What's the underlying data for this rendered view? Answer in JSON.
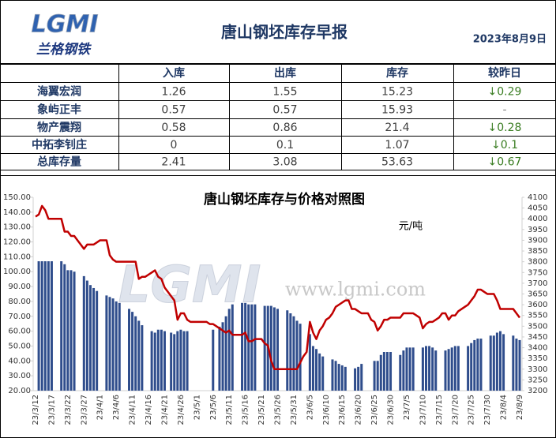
{
  "header": {
    "logo": "LGMI",
    "brand": "兰格钢铁",
    "title": "唐山钢坯库存早报",
    "date": "2023年8月9日"
  },
  "table": {
    "columns": [
      "入库",
      "出库",
      "库存",
      "较昨日"
    ],
    "rows": [
      [
        "海翼宏润",
        "1.26",
        "1.55",
        "15.23",
        "↓0.29"
      ],
      [
        "象屿正丰",
        "0.57",
        "0.57",
        "15.93",
        "-"
      ],
      [
        "物产震翔",
        "0.58",
        "0.86",
        "21.4",
        "↓0.28"
      ],
      [
        "中拓李钊庄",
        "0",
        "0.1",
        "1.07",
        "↓0.1"
      ],
      [
        "总库存量",
        "2.41",
        "3.08",
        "53.63",
        "↓0.67"
      ]
    ]
  },
  "chart_data": {
    "type": "combo",
    "title": "唐山钢坯库存与价格对照图",
    "unit_label": "元/吨",
    "watermark": "www.lgmi.com",
    "categories": [
      "23/3/12",
      null,
      null,
      null,
      null,
      "23/3/17",
      null,
      null,
      null,
      null,
      "23/3/22",
      null,
      null,
      null,
      null,
      "23/3/27",
      null,
      null,
      null,
      null,
      "23/4/1",
      null,
      null,
      null,
      null,
      "23/4/6",
      null,
      null,
      null,
      null,
      "23/4/11",
      null,
      null,
      null,
      null,
      "23/4/16",
      null,
      null,
      null,
      null,
      "23/4/21",
      null,
      null,
      null,
      null,
      "23/4/26",
      null,
      null,
      null,
      null,
      "23/5/1",
      null,
      null,
      null,
      null,
      "23/5/6",
      null,
      null,
      null,
      null,
      "23/5/11",
      null,
      null,
      null,
      null,
      "23/5/16",
      null,
      null,
      null,
      null,
      "23/5/21",
      null,
      null,
      null,
      null,
      "23/5/26",
      null,
      null,
      null,
      null,
      "23/5/31",
      null,
      null,
      null,
      null,
      "23/6/5",
      null,
      null,
      null,
      null,
      "23/6/10",
      null,
      null,
      null,
      null,
      "23/6/15",
      null,
      null,
      null,
      null,
      "23/6/20",
      null,
      null,
      null,
      null,
      "23/6/25",
      null,
      null,
      null,
      null,
      "23/6/30",
      null,
      null,
      null,
      null,
      "23/7/5",
      null,
      null,
      null,
      null,
      "23/7/10",
      null,
      null,
      null,
      null,
      "23/7/15",
      null,
      null,
      null,
      null,
      "23/7/20",
      null,
      null,
      null,
      null,
      "23/7/25",
      null,
      null,
      null,
      null,
      "23/7/30",
      null,
      null,
      null,
      null,
      "23/8/4",
      null,
      null,
      null,
      null,
      "23/8/9"
    ],
    "series": [
      {
        "type": "bar",
        "color": "#2f4d8c",
        "values": [
          null,
          107,
          107,
          107,
          107,
          107,
          null,
          null,
          107,
          105,
          101,
          101,
          100,
          null,
          null,
          97,
          94,
          91,
          89,
          87,
          null,
          null,
          84,
          83,
          82,
          80,
          79,
          null,
          null,
          75,
          73,
          70,
          67,
          64,
          null,
          null,
          60,
          59,
          61,
          61,
          60,
          null,
          59,
          58,
          60,
          61,
          60,
          60,
          null,
          null,
          null,
          null,
          null,
          null,
          null,
          61,
          null,
          63,
          66,
          70,
          75,
          78,
          null,
          null,
          79,
          79,
          78,
          78,
          78,
          null,
          null,
          77,
          77,
          77,
          76,
          75,
          null,
          null,
          74,
          72,
          70,
          67,
          65,
          null,
          null,
          58,
          50,
          48,
          45,
          43,
          null,
          null,
          41,
          40,
          38,
          37,
          36,
          null,
          null,
          35,
          36,
          38,
          null,
          null,
          null,
          40,
          40,
          44,
          46,
          46,
          46,
          null,
          null,
          44,
          47,
          49,
          49,
          49,
          null,
          null,
          49,
          50,
          50,
          49,
          47,
          null,
          null,
          47,
          48,
          49,
          50,
          50,
          null,
          null,
          50,
          52,
          54,
          55,
          55,
          null,
          null,
          57,
          57,
          59,
          60,
          58,
          null,
          null,
          57,
          55,
          54
        ]
      },
      {
        "type": "line",
        "axis": "y2",
        "color": "#c00000",
        "values": [
          4010,
          4020,
          4060,
          4040,
          4000,
          4000,
          4000,
          4000,
          4000,
          3940,
          3940,
          3920,
          3920,
          3900,
          3880,
          3860,
          3880,
          3880,
          3880,
          3890,
          3900,
          3900,
          3900,
          3830,
          3810,
          3800,
          3800,
          3800,
          3800,
          3800,
          3800,
          3800,
          3720,
          3730,
          3730,
          3740,
          3750,
          3760,
          3730,
          3720,
          3680,
          3660,
          3640,
          3620,
          3530,
          3560,
          3560,
          3530,
          3520,
          3520,
          3520,
          3520,
          3520,
          3520,
          3510,
          3510,
          3500,
          3490,
          3480,
          3470,
          3480,
          3460,
          3460,
          3460,
          3460,
          3470,
          3430,
          3430,
          3440,
          3440,
          3440,
          3420,
          3410,
          3340,
          3300,
          3300,
          3300,
          3300,
          3300,
          3300,
          3300,
          3300,
          3330,
          3360,
          3380,
          3520,
          3470,
          3440,
          3480,
          3500,
          3530,
          3540,
          3560,
          3590,
          3600,
          3610,
          3620,
          3620,
          3580,
          3580,
          3570,
          3560,
          3560,
          3560,
          3530,
          3520,
          3480,
          3500,
          3530,
          3530,
          3540,
          3540,
          3540,
          3540,
          3560,
          3560,
          3560,
          3560,
          3550,
          3540,
          3490,
          3510,
          3520,
          3520,
          3530,
          3540,
          3560,
          3560,
          3530,
          3550,
          3550,
          3570,
          3580,
          3590,
          3600,
          3620,
          3640,
          3670,
          3670,
          3660,
          3650,
          3650,
          3650,
          3620,
          3580,
          3580,
          3580,
          3580,
          3580,
          3560,
          3540
        ]
      }
    ],
    "ylim": [
      20,
      150
    ],
    "yticks": [
      {
        "value": 20,
        "label": "20.00"
      },
      {
        "value": 30,
        "label": "30.00"
      },
      {
        "value": 40,
        "label": "40.00"
      },
      {
        "value": 50,
        "label": "50.00"
      },
      {
        "value": 60,
        "label": "60.00"
      },
      {
        "value": 70,
        "label": "70.00"
      },
      {
        "value": 80,
        "label": "80.00"
      },
      {
        "value": 90,
        "label": "90.00"
      },
      {
        "value": 100,
        "label": "100.00"
      },
      {
        "value": 110,
        "label": "110.00"
      },
      {
        "value": 120,
        "label": "120.00"
      },
      {
        "value": 130,
        "label": "130.00"
      },
      {
        "value": 140,
        "label": "140.00"
      },
      {
        "value": 150,
        "label": "150.00"
      }
    ],
    "y2lim": [
      3200,
      4100
    ],
    "y2ticks": [
      3200,
      3250,
      3300,
      3350,
      3400,
      3450,
      3500,
      3550,
      3600,
      3650,
      3700,
      3750,
      3800,
      3850,
      3900,
      3950,
      4000,
      4050,
      4100
    ],
    "grid": false
  }
}
